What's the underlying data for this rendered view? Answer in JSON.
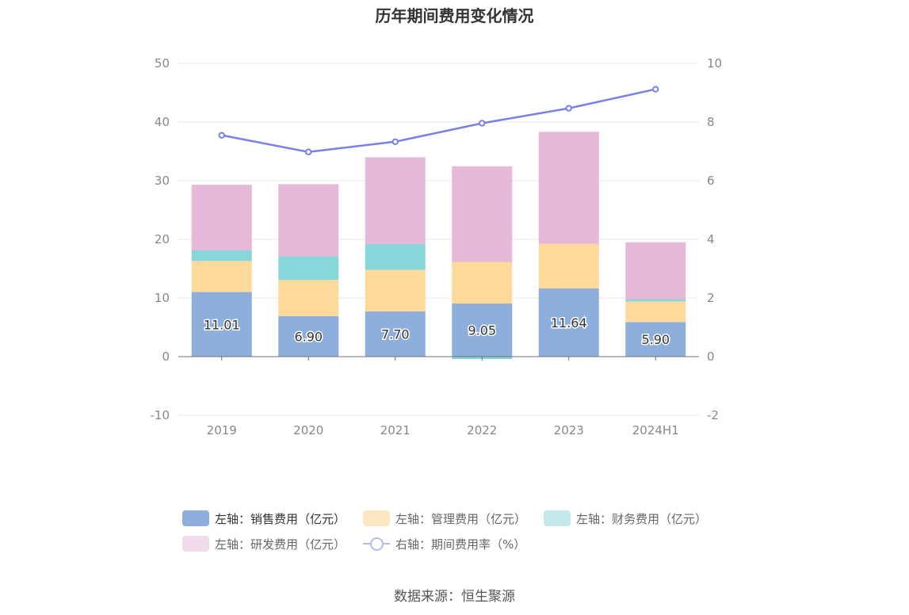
{
  "title": "历年期间费用变化情况",
  "source": "数据来源：恒生聚源",
  "colors": {
    "sales": "#8eaedb",
    "admin": "#fed99c",
    "finance": "#87d6da",
    "rnd": "#e6b9d9",
    "ratio": "#7b7fe8",
    "grid": "#e6e6f0",
    "axis_text": "#888888"
  },
  "legend": {
    "sales": "左轴：销售费用（亿元）",
    "admin": "左轴：管理费用（亿元）",
    "finance": "左轴：财务费用（亿元）",
    "rnd": "左轴：研发费用（亿元）",
    "ratio": "右轴：期间费用率（%）"
  },
  "chart_data": {
    "type": "bar",
    "stacked": true,
    "categories": [
      "2019",
      "2020",
      "2021",
      "2022",
      "2023",
      "2024H1"
    ],
    "series": [
      {
        "name": "左轴：销售费用（亿元）",
        "key": "sales",
        "axis": "left",
        "values": [
          11.01,
          6.9,
          7.7,
          9.05,
          11.64,
          5.9
        ],
        "labels": [
          "11.01",
          "6.90",
          "7.70",
          "9.05",
          "11.64",
          "5.90"
        ]
      },
      {
        "name": "左轴：管理费用（亿元）",
        "key": "admin",
        "axis": "left",
        "values": [
          5.3,
          6.2,
          7.1,
          7.1,
          7.6,
          3.5
        ]
      },
      {
        "name": "左轴：财务费用（亿元）",
        "key": "finance",
        "axis": "left",
        "values": [
          1.8,
          4.0,
          4.4,
          -0.4,
          0.0,
          0.4
        ]
      },
      {
        "name": "左轴：研发费用（亿元）",
        "key": "rnd",
        "axis": "left",
        "values": [
          11.2,
          12.3,
          14.8,
          16.3,
          19.1,
          9.7
        ]
      },
      {
        "name": "右轴：期间费用率（%）",
        "key": "ratio",
        "axis": "right",
        "type": "line",
        "values": [
          7.55,
          6.98,
          7.33,
          7.96,
          8.47,
          9.12
        ]
      }
    ],
    "left_axis": {
      "min": -10,
      "max": 50,
      "ticks": [
        "-10",
        "0",
        "10",
        "20",
        "30",
        "40",
        "50"
      ]
    },
    "right_axis": {
      "min": -2,
      "max": 10,
      "ticks": [
        "-2",
        "0",
        "2",
        "4",
        "6",
        "8",
        "10"
      ]
    },
    "grid": true,
    "legend_position": "bottom"
  }
}
